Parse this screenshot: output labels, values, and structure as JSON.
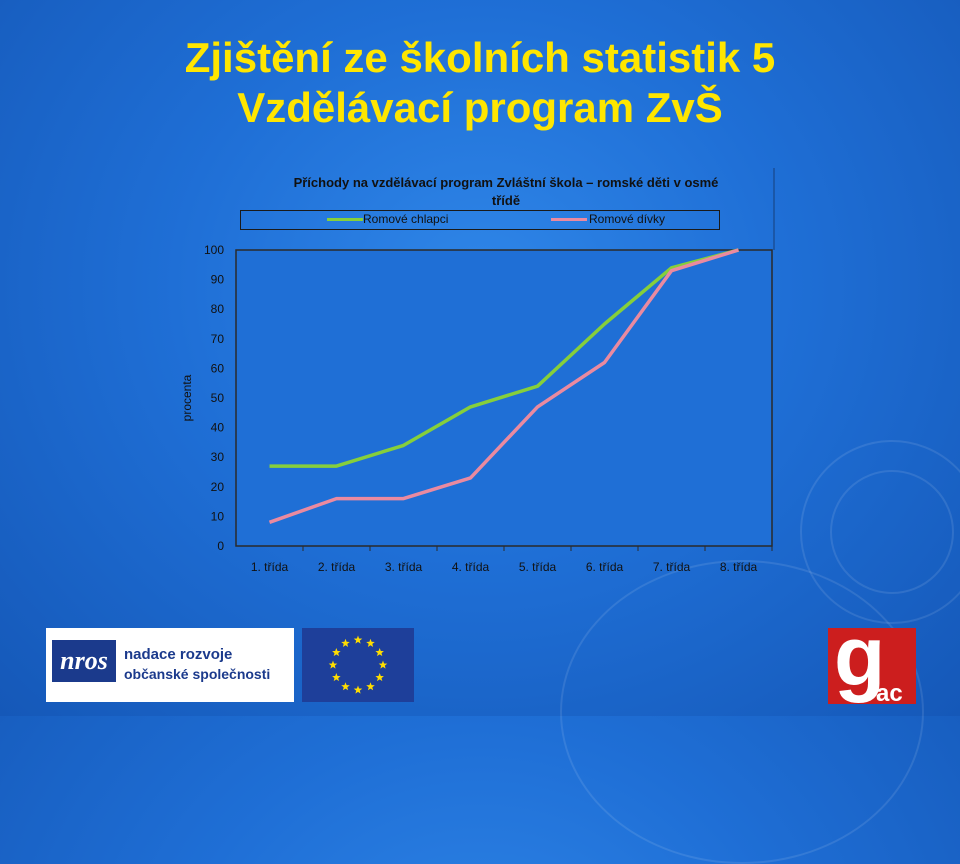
{
  "slide": {
    "title_line1": "Zjištění ze školních statistik 5",
    "title_line2": "Vzdělávací program ZvŠ"
  },
  "colors": {
    "title": "#ffe600",
    "series_boys": "#86cf3b",
    "series_girls": "#ea8aa0",
    "background": "#1f6fd6"
  },
  "logos": {
    "nros_text": "nros",
    "nros_line1": "nadace rozvoje",
    "nros_line2": "občanské společnosti",
    "gac_text": "g",
    "gac_sub": "ac"
  },
  "chart_data": {
    "type": "line",
    "title": "Příchody na vzdělávací program Zvláštní škola – romské děti v osmé třídě",
    "title_line1": "Příchody na vzdělávací program Zvláštní škola – romské děti v osmé",
    "title_line2": "třídě",
    "xlabel": "",
    "ylabel": "procenta",
    "categories": [
      "1. třída",
      "2. třída",
      "3. třída",
      "4. třída",
      "5. třída",
      "6. třída",
      "7. třída",
      "8. třída"
    ],
    "y_ticks": [
      "0",
      "10",
      "20",
      "30",
      "40",
      "50",
      "60",
      "70",
      "80",
      "90",
      "100"
    ],
    "ylim": [
      0,
      100
    ],
    "grid": false,
    "legend": "top",
    "series": [
      {
        "name": "Romové chlapci",
        "values": [
          27,
          27,
          34,
          47,
          54,
          75,
          94,
          100
        ]
      },
      {
        "name": "Romové dívky",
        "values": [
          8,
          16,
          16,
          23,
          47,
          62,
          93,
          100
        ]
      }
    ]
  }
}
